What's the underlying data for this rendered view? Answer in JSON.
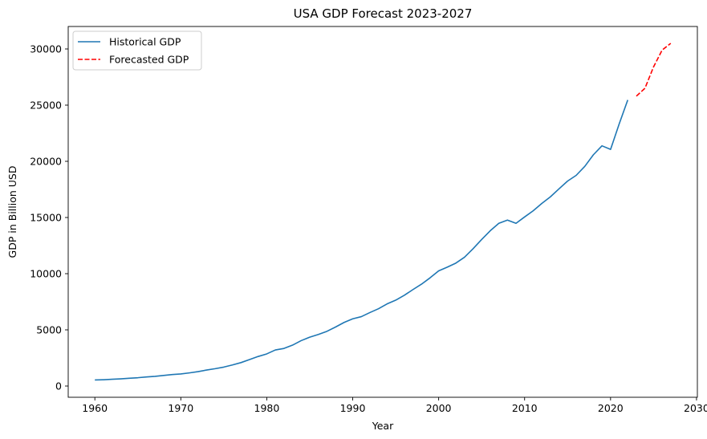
{
  "chart_data": {
    "type": "line",
    "title": "USA GDP Forecast 2023-2027",
    "xlabel": "Year",
    "ylabel": "GDP in Billion USD",
    "xlim": [
      1956.9,
      2030.1
    ],
    "ylim": [
      -1000,
      32000
    ],
    "x_ticks": [
      1960,
      1970,
      1980,
      1990,
      2000,
      2010,
      2020,
      2030
    ],
    "y_ticks": [
      0,
      5000,
      10000,
      15000,
      20000,
      25000,
      30000
    ],
    "grid": false,
    "legend_position": "top-left",
    "series": [
      {
        "name": "Historical GDP",
        "color": "#1f77b4",
        "style": "solid",
        "x": [
          1960,
          1961,
          1962,
          1963,
          1964,
          1965,
          1966,
          1967,
          1968,
          1969,
          1970,
          1971,
          1972,
          1973,
          1974,
          1975,
          1976,
          1977,
          1978,
          1979,
          1980,
          1981,
          1982,
          1983,
          1984,
          1985,
          1986,
          1987,
          1988,
          1989,
          1990,
          1991,
          1992,
          1993,
          1994,
          1995,
          1996,
          1997,
          1998,
          1999,
          2000,
          2001,
          2002,
          2003,
          2004,
          2005,
          2006,
          2007,
          2008,
          2009,
          2010,
          2011,
          2012,
          2013,
          2014,
          2015,
          2016,
          2017,
          2018,
          2019,
          2020,
          2021,
          2022
        ],
        "y": [
          540,
          560,
          600,
          640,
          690,
          740,
          810,
          860,
          940,
          1020,
          1075,
          1170,
          1280,
          1425,
          1545,
          1685,
          1875,
          2085,
          2355,
          2630,
          2860,
          3210,
          3345,
          3640,
          4040,
          4350,
          4590,
          4870,
          5250,
          5660,
          5980,
          6175,
          6540,
          6880,
          7310,
          7640,
          8075,
          8580,
          9065,
          9630,
          10250,
          10580,
          10940,
          11460,
          12220,
          13040,
          13820,
          14480,
          14770,
          14480,
          15050,
          15600,
          16250,
          16840,
          17550,
          18240,
          18750,
          19550,
          20580,
          21380,
          21060,
          23320,
          25460
        ]
      },
      {
        "name": "Forecasted GDP",
        "color": "#ff0000",
        "style": "dashed",
        "x": [
          2023,
          2024,
          2025,
          2026,
          2027
        ],
        "y": [
          25800,
          26500,
          28400,
          29900,
          30500
        ]
      }
    ]
  }
}
